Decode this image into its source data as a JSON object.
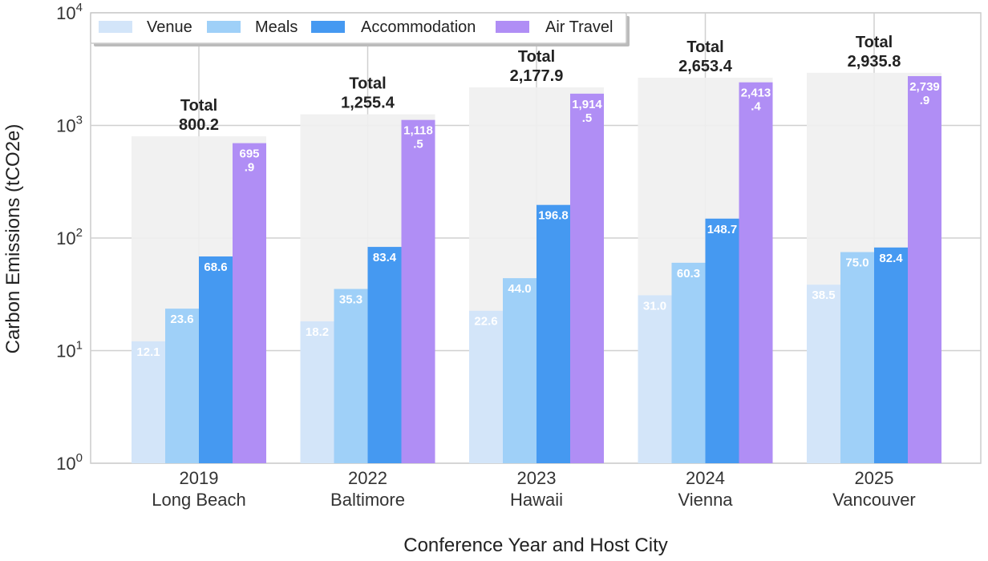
{
  "chart_data": {
    "type": "bar",
    "title": "",
    "xlabel": "Conference Year and Host City",
    "ylabel": "Carbon Emissions (tCO2e)",
    "yscale": "log",
    "ylim": [
      1,
      10000
    ],
    "yticks": [
      {
        "value": 1,
        "base": "10",
        "exp": "0"
      },
      {
        "value": 10,
        "base": "10",
        "exp": "1"
      },
      {
        "value": 100,
        "base": "10",
        "exp": "2"
      },
      {
        "value": 1000,
        "base": "10",
        "exp": "3"
      },
      {
        "value": 10000,
        "base": "10",
        "exp": "4"
      }
    ],
    "categories": [
      {
        "year": "2019",
        "city": "Long Beach"
      },
      {
        "year": "2022",
        "city": "Baltimore"
      },
      {
        "year": "2023",
        "city": "Hawaii"
      },
      {
        "year": "2024",
        "city": "Vienna"
      },
      {
        "year": "2025",
        "city": "Vancouver"
      }
    ],
    "series": [
      {
        "name": "Venue",
        "color": "#d3e5f9",
        "values": [
          12.1,
          18.2,
          22.6,
          31.0,
          38.5
        ],
        "labels": [
          [
            "12.1"
          ],
          [
            "18.2"
          ],
          [
            "22.6"
          ],
          [
            "31.0"
          ],
          [
            "38.5"
          ]
        ]
      },
      {
        "name": "Meals",
        "color": "#9fd0f8",
        "values": [
          23.6,
          35.3,
          44.0,
          60.3,
          75.0
        ],
        "labels": [
          [
            "23.6"
          ],
          [
            "35.3"
          ],
          [
            "44.0"
          ],
          [
            "60.3"
          ],
          [
            "75.0"
          ]
        ]
      },
      {
        "name": "Accommodation",
        "color": "#4599f1",
        "values": [
          68.6,
          83.4,
          196.8,
          148.7,
          82.4
        ],
        "labels": [
          [
            "68.6"
          ],
          [
            "83.4"
          ],
          [
            "196.8"
          ],
          [
            "148.7"
          ],
          [
            "82.4"
          ]
        ]
      },
      {
        "name": "Air Travel",
        "color": "#b08ef5",
        "values": [
          695.9,
          1118.5,
          1914.5,
          2413.4,
          2739.9
        ],
        "labels": [
          [
            "695",
            ".9"
          ],
          [
            "1,118",
            ".5"
          ],
          [
            "1,914",
            ".5"
          ],
          [
            "2,413",
            ".4"
          ],
          [
            "2,739",
            ".9"
          ]
        ]
      }
    ],
    "totals": {
      "label": "Total",
      "values": [
        800.2,
        1255.4,
        2177.9,
        2653.4,
        2935.8
      ],
      "formatted": [
        "800.2",
        "1,255.4",
        "2,177.9",
        "2,653.4",
        "2,935.8"
      ],
      "color": "#efefef"
    },
    "legend": {
      "placement": "top-left",
      "entries": [
        "Venue",
        "Meals",
        "Accommodation",
        "Air Travel"
      ]
    },
    "grid": true
  }
}
